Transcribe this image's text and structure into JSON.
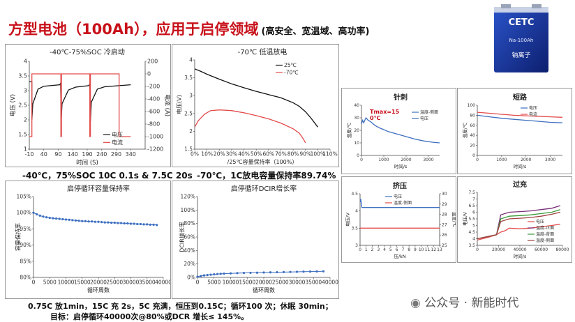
{
  "header": {
    "title": "方型电池（100Ah），应用于启停领域",
    "subtitle": "(高安全、宽温域、高功率)"
  },
  "product": {
    "logo": "CETC",
    "model": "Na-100Ah",
    "name": "钠离子"
  },
  "captions": {
    "cold_start": "-40℃，75%SOC 10C 0.1s & 7.5C 20s",
    "low_temp": "-70℃，1C放电容量保持率89.74%",
    "test_condition": "0.75C 放1min，15C 充 2s，5C 充满，恒压到0.15C；循环100 次；休眠 30min；",
    "target": "目标：启停循环40000次@80%或DCR 增长≤ 145%。"
  },
  "watermark": "公众号 · 新能时代",
  "colors": {
    "red": "#e34b4b",
    "black": "#111111",
    "blue": "#3d6fc1",
    "title_red": "#c8101a"
  },
  "chart_data": [
    {
      "id": "cold_start",
      "type": "line",
      "title": "-40℃-75%SOC 冷启动",
      "xlabel": "时间 (S)",
      "ylabel": "电压 (V)",
      "y2label": "电流 (A)",
      "xlim": [
        -10,
        390
      ],
      "ylim": [
        1.0,
        4.0
      ],
      "y2lim": [
        -1200,
        200
      ],
      "xticks": [
        -10,
        40,
        90,
        140,
        190,
        240,
        290,
        340
      ],
      "yticks": [
        1.0,
        1.5,
        2.0,
        2.5,
        3.0,
        3.5,
        4.0
      ],
      "y2ticks": [
        200,
        0,
        -200,
        -400,
        -600,
        -800,
        -1000,
        -1200
      ],
      "legend": [
        "电压",
        "电流"
      ],
      "series": [
        {
          "name": "电压",
          "axis": "y",
          "color": "#111111",
          "x": [
            -10,
            -1,
            -1,
            2,
            20,
            40,
            95,
            98,
            100,
            103,
            125,
            150,
            195,
            199,
            201,
            204,
            225,
            250,
            300,
            340
          ],
          "y": [
            3.3,
            3.3,
            2.0,
            2.55,
            3.05,
            3.15,
            3.2,
            3.25,
            1.95,
            2.55,
            3.02,
            3.12,
            3.17,
            3.22,
            1.95,
            2.6,
            3.05,
            3.13,
            3.17,
            3.2
          ]
        },
        {
          "name": "电流",
          "axis": "y2",
          "color": "#e34b4b",
          "x": [
            -10,
            -1,
            -1,
            99,
            99,
            101,
            101,
            199,
            199,
            201,
            201,
            300,
            300,
            340
          ],
          "y": [
            -1000,
            -1000,
            0,
            0,
            -1000,
            -1000,
            0,
            0,
            -1000,
            -1000,
            0,
            0,
            -1000,
            -1000
          ]
        }
      ]
    },
    {
      "id": "low_temp",
      "type": "line",
      "title": "-70℃ 低温放电",
      "xlabel": "/25℃容量保持率（100%）",
      "ylabel": "电压(V)",
      "xlim": [
        0,
        110
      ],
      "ylim": [
        1.5,
        4.0
      ],
      "xticks": [
        0,
        10,
        20,
        30,
        40,
        50,
        60,
        70,
        80,
        90,
        100,
        110
      ],
      "xticklabels": [
        "0%",
        "10%",
        "20%",
        "30%",
        "40%",
        "50%",
        "60%",
        "70%",
        "80%",
        "90%",
        "100%",
        "110%"
      ],
      "yticks": [
        1.5,
        2.0,
        2.5,
        3.0,
        3.5,
        4.0
      ],
      "legend": [
        "25℃",
        "-70℃"
      ],
      "series": [
        {
          "name": "25℃",
          "color": "#111111",
          "x": [
            0,
            5,
            10,
            20,
            30,
            40,
            50,
            60,
            70,
            80,
            85,
            90,
            95,
            100
          ],
          "y": [
            3.75,
            3.68,
            3.6,
            3.46,
            3.33,
            3.22,
            3.12,
            3.03,
            2.94,
            2.8,
            2.7,
            2.55,
            2.35,
            2.12
          ]
        },
        {
          "name": "-70℃",
          "color": "#e34b4b",
          "x": [
            0,
            3,
            8,
            13,
            20,
            30,
            40,
            50,
            60,
            70,
            80,
            85,
            88,
            90
          ],
          "y": [
            2.12,
            2.3,
            2.48,
            2.58,
            2.6,
            2.58,
            2.52,
            2.44,
            2.35,
            2.23,
            2.07,
            1.95,
            1.8,
            1.68
          ]
        }
      ]
    },
    {
      "id": "capacity_retention",
      "type": "line",
      "title": "启停循环容量保持率",
      "xlabel": "循环周数",
      "ylabel": "容量保持率",
      "xlim": [
        0,
        40000
      ],
      "ylim": [
        80,
        105
      ],
      "xticks": [
        0,
        5000,
        10000,
        15000,
        20000,
        25000,
        30000,
        35000,
        40000
      ],
      "yticks": [
        80,
        85,
        90,
        95,
        100,
        105
      ],
      "ytickformat": "percent",
      "series": [
        {
          "name": "容量保持率",
          "color": "#3d6fc1",
          "x": [
            0,
            1000,
            2000,
            3000,
            4000,
            5000,
            6000,
            7000,
            8000,
            9000,
            10000,
            11000,
            12000,
            13000,
            14000,
            15000,
            16000,
            17000,
            18000,
            19000,
            20000,
            21000,
            22000,
            23000,
            24000,
            25000,
            26000,
            27000,
            28000,
            29000,
            30000,
            31000,
            32000,
            33000,
            34000,
            35000,
            36000,
            37000,
            38000
          ],
          "y": [
            100,
            99.5,
            99.1,
            98.8,
            98.6,
            98.4,
            98.3,
            98.2,
            98.1,
            98.0,
            97.9,
            97.8,
            97.7,
            97.6,
            97.5,
            97.4,
            97.4,
            97.3,
            97.3,
            97.2,
            97.2,
            97.1,
            97.0,
            97.0,
            96.9,
            96.9,
            96.8,
            96.8,
            96.7,
            96.7,
            96.6,
            96.6,
            96.5,
            96.5,
            96.4,
            96.4,
            96.3,
            96.3,
            96.2
          ]
        }
      ]
    },
    {
      "id": "dcir_growth",
      "type": "line",
      "title": "启停循环DCIR增长率",
      "xlabel": "循环周数",
      "ylabel": "DCIR增长率",
      "xlim": [
        0,
        40000
      ],
      "ylim": [
        0,
        120
      ],
      "xticks": [
        0,
        5000,
        10000,
        15000,
        20000,
        25000,
        30000,
        35000,
        40000
      ],
      "yticks": [
        0,
        20,
        40,
        60,
        80,
        100,
        120
      ],
      "ytickformat": "percent",
      "series": [
        {
          "name": "DCIR增长率",
          "color": "#3d6fc1",
          "x": [
            0,
            1000,
            2000,
            3000,
            4000,
            5000,
            6000,
            7000,
            8000,
            10000,
            12000,
            14000,
            16000,
            18000,
            20000,
            22000,
            24000,
            26000,
            28000,
            30000,
            32000,
            34000,
            36000,
            38000
          ],
          "y": [
            1,
            2,
            3,
            3.5,
            4,
            4.5,
            5,
            5.3,
            5.6,
            6,
            6.3,
            6.6,
            6.8,
            7,
            7.3,
            7.5,
            7.7,
            7.9,
            8.1,
            8.3,
            8.5,
            8.7,
            8.8,
            9
          ]
        }
      ]
    },
    {
      "id": "nail",
      "type": "line",
      "title": "针刺",
      "annotation": "Tmax=15 0℃",
      "xlabel": "时间/s",
      "ylabel": "温度/℃",
      "xlim": [
        0,
        3500
      ],
      "ylim": [
        0,
        40
      ],
      "xticks": [
        0,
        1000,
        2000,
        3000
      ],
      "yticks": [
        0,
        10,
        20,
        30,
        40
      ],
      "legend": [
        "温度-侧面",
        "电压"
      ],
      "series": [
        {
          "name": "温度-侧面",
          "color": "#3d6fc1",
          "x": [
            0,
            50,
            100,
            200,
            300,
            400,
            600,
            800,
            1200,
            1600,
            2000,
            2400,
            2800,
            3200,
            3500
          ],
          "y": [
            25,
            28,
            26,
            30,
            28,
            27,
            24,
            22,
            19,
            17,
            15,
            13,
            11.5,
            10.5,
            10
          ]
        }
      ]
    },
    {
      "id": "short",
      "type": "line",
      "title": "短路",
      "xlabel": "时间/s",
      "ylabel": "温度/℃",
      "xlim": [
        0,
        3500
      ],
      "ylim": [
        0,
        100
      ],
      "xticks": [
        0,
        1000,
        2000,
        3000
      ],
      "yticks": [
        0,
        20,
        40,
        60,
        80,
        100
      ],
      "legend": [
        "电压",
        "电流"
      ],
      "series": [
        {
          "name": "电压",
          "color": "#3d6fc1",
          "x": [
            0,
            500,
            1000,
            1500,
            2000,
            2500,
            3000,
            3500
          ],
          "y": [
            80,
            77,
            74,
            72,
            70,
            68,
            66,
            65
          ]
        },
        {
          "name": "电流",
          "color": "#e34b4b",
          "x": [
            0,
            500,
            1000,
            1500,
            2000,
            2500,
            3000,
            3500
          ],
          "y": [
            86,
            84,
            82,
            80,
            79,
            78,
            77,
            76
          ]
        }
      ]
    },
    {
      "id": "crush",
      "type": "line",
      "title": "挤压",
      "xlabel": "压/kN",
      "ylabel": "电压/V",
      "xlim": [
        0,
        13
      ],
      "ylim": [
        3,
        4.5
      ],
      "xticks": [
        0,
        1,
        2,
        3,
        4,
        5,
        6,
        7,
        8,
        9,
        10,
        11,
        12,
        13
      ],
      "yticks": [
        3,
        3.5,
        4,
        4.5
      ],
      "y2label": "温度/℃",
      "y2lim": [
        25,
        30
      ],
      "y2ticks": [
        25,
        26,
        27,
        28,
        29,
        30
      ],
      "legend": [
        "电压",
        "温度-侧面"
      ],
      "series": [
        {
          "name": "电压",
          "color": "#3d6fc1",
          "x": [
            0,
            0.1,
            0.3,
            13
          ],
          "y": [
            4.25,
            4.35,
            4.1,
            4.1
          ]
        },
        {
          "name": "温度-侧面",
          "color": "#e34b4b",
          "x": [
            0,
            13
          ],
          "y": [
            3.5,
            3.5
          ]
        }
      ]
    },
    {
      "id": "overcharge",
      "type": "line",
      "title": "过充",
      "xlabel": "时间/s",
      "ylabel": "电压/V",
      "xlim": [
        0,
        80000
      ],
      "ylim": [
        3.5,
        7.5
      ],
      "xticks": [
        0,
        20000,
        40000,
        60000,
        80000
      ],
      "yticks": [
        3.5,
        4.0,
        4.5,
        5.0,
        5.5,
        6.0,
        6.5,
        7.0,
        7.5
      ],
      "legend": [
        "电压",
        "温度-正面",
        "温度-背面",
        "温度-侧面"
      ],
      "series": [
        {
          "name": "电压",
          "color": "#e34b4b",
          "x": [
            0,
            10000,
            18000,
            22000,
            26000,
            30000,
            40000,
            50000,
            60000,
            70000,
            78000
          ],
          "y": [
            3.9,
            4.1,
            4.3,
            4.5,
            4.6,
            4.8,
            4.75,
            4.8,
            4.9,
            5.0,
            5.1
          ]
        },
        {
          "name": "温度-正面",
          "color": "#7a2e7a",
          "x": [
            0,
            18000,
            22000,
            30000,
            40000,
            50000,
            60000,
            70000,
            78000
          ],
          "y": [
            4.0,
            4.3,
            5.8,
            6.0,
            6.05,
            6.1,
            6.2,
            6.3,
            6.5
          ]
        },
        {
          "name": "温度-背面",
          "color": "#3a9a3a",
          "x": [
            0,
            18000,
            22000,
            30000,
            40000,
            50000,
            60000,
            70000,
            78000
          ],
          "y": [
            4.0,
            4.3,
            5.5,
            5.7,
            5.75,
            5.8,
            5.9,
            6.0,
            6.2
          ]
        },
        {
          "name": "温度-侧面",
          "color": "#a04040",
          "x": [
            0,
            18000,
            22000,
            30000,
            40000,
            50000,
            60000,
            70000,
            78000
          ],
          "y": [
            4.0,
            4.3,
            5.3,
            5.5,
            5.55,
            5.6,
            5.7,
            5.85,
            6.0
          ]
        }
      ]
    }
  ]
}
